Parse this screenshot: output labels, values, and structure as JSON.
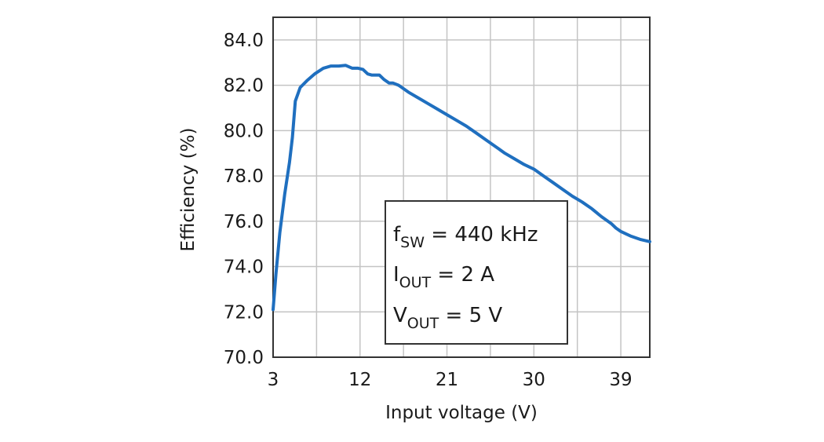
{
  "chart_data": {
    "type": "line",
    "xlabel": "Input voltage (V)",
    "ylabel": "Efficiency (%)",
    "xlim": [
      3,
      42
    ],
    "ylim": [
      70,
      85
    ],
    "x_ticks": [
      3,
      12,
      21,
      30,
      39
    ],
    "x_tick_labels": [
      "3",
      "12",
      "21",
      "30",
      "39"
    ],
    "y_ticks": [
      70,
      72,
      74,
      76,
      78,
      80,
      82,
      84
    ],
    "y_tick_labels": [
      "70.0",
      "72.0",
      "74.0",
      "76.0",
      "78.0",
      "80.0",
      "82.0",
      "84.0"
    ],
    "grid": true,
    "x_grid_step": 4.5,
    "y_grid_step": 2,
    "series": [
      {
        "color": "#1f6fbf",
        "x": [
          3.0,
          3.3,
          3.7,
          4.2,
          4.7,
          5.0,
          5.3,
          5.8,
          6.5,
          7.3,
          8.2,
          9.0,
          9.8,
          10.5,
          11.2,
          11.8,
          12.3,
          12.8,
          13.2,
          13.6,
          14.0,
          14.5,
          15.0,
          15.4,
          16.0,
          17.0,
          18.0,
          19.0,
          20.0,
          21.0,
          22.0,
          23.0,
          24.0,
          25.0,
          26.0,
          27.0,
          28.0,
          29.0,
          30.0,
          31.0,
          32.0,
          33.0,
          34.0,
          35.0,
          36.0,
          37.0,
          38.0,
          38.5,
          39.0,
          39.5,
          40.0,
          41.0,
          42.0
        ],
        "y": [
          72.1,
          73.7,
          75.5,
          77.2,
          78.6,
          79.7,
          81.3,
          81.9,
          82.2,
          82.5,
          82.75,
          82.85,
          82.85,
          82.88,
          82.75,
          82.75,
          82.7,
          82.5,
          82.45,
          82.45,
          82.45,
          82.25,
          82.1,
          82.1,
          82.0,
          81.7,
          81.45,
          81.2,
          80.95,
          80.7,
          80.45,
          80.2,
          79.9,
          79.6,
          79.3,
          79.0,
          78.75,
          78.5,
          78.3,
          78.0,
          77.7,
          77.4,
          77.1,
          76.85,
          76.55,
          76.2,
          75.9,
          75.7,
          75.55,
          75.45,
          75.35,
          75.2,
          75.1
        ]
      }
    ],
    "annotation": {
      "lines": [
        {
          "main": "f",
          "sub": "SW",
          "rest": " = 440 kHz"
        },
        {
          "main": "I",
          "sub": "OUT",
          "rest": " = 2 A"
        },
        {
          "main": "V",
          "sub": "OUT",
          "rest": " = 5 V"
        }
      ]
    }
  }
}
